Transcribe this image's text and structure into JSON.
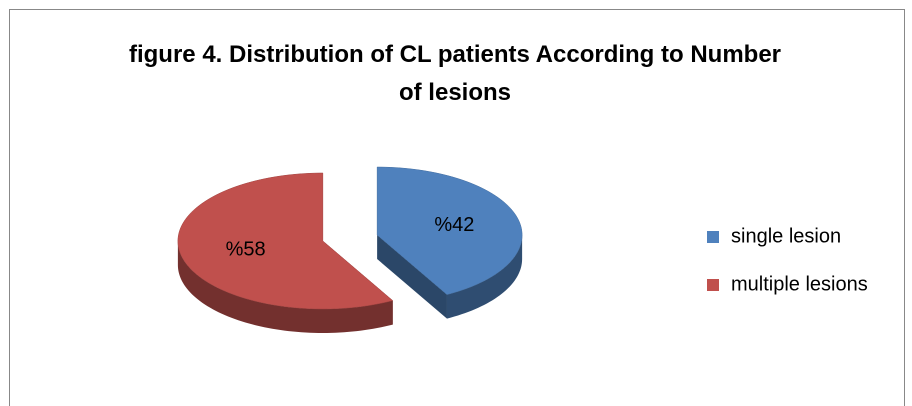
{
  "chart_data": {
    "type": "pie",
    "title": "figure 4. Distribution of CL patients According to Number of lesions",
    "categories": [
      "single lesion",
      "multiple lesions"
    ],
    "values": [
      42,
      58
    ],
    "value_labels": [
      "%42",
      "%58"
    ],
    "colors": [
      "#4f81bd",
      "#c0504d"
    ],
    "legend": "right"
  }
}
